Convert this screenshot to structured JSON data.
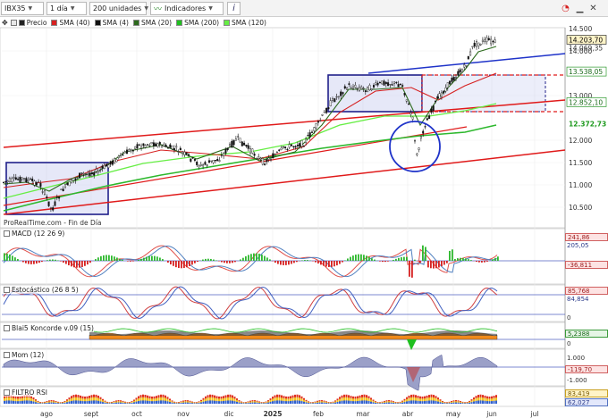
{
  "toolbar": {
    "symbol": "IBX35",
    "period": "1 día",
    "units": "200 unidades",
    "indicators": "Indicadores",
    "info": "i"
  },
  "legend": [
    {
      "label": "Precio",
      "color": "#222222"
    },
    {
      "label": "SMA (40)",
      "color": "#d62020"
    },
    {
      "label": "SMA (4)",
      "color": "#111111"
    },
    {
      "label": "SMA (20)",
      "color": "#2e6b1e"
    },
    {
      "label": "SMA (200)",
      "color": "#1fbf1f"
    },
    {
      "label": "SMA (120)",
      "color": "#66ee44"
    }
  ],
  "watermark": "ProRealTime.com - Fin de Día",
  "price_tags": [
    {
      "text": "14.500",
      "value": 14500,
      "style": "axis"
    },
    {
      "text": "14.203,70",
      "value": 14250,
      "style": "last"
    },
    {
      "text": "14.069,35",
      "value": 14075,
      "style": "plain"
    },
    {
      "text": "14.000",
      "value": 14000,
      "style": "axis"
    },
    {
      "text": "13.538,05",
      "value": 13538,
      "style": "green"
    },
    {
      "text": "13.000",
      "value": 13000,
      "style": "axis"
    },
    {
      "text": "12.852,10",
      "value": 12852,
      "style": "green"
    },
    {
      "text": "12.372,73",
      "value": 12372,
      "style": "bold-green"
    },
    {
      "text": "12.000",
      "value": 12000,
      "style": "axis"
    },
    {
      "text": "11.500",
      "value": 11500,
      "style": "axis"
    },
    {
      "text": "11.000",
      "value": 11000,
      "style": "axis"
    },
    {
      "text": "10.500",
      "value": 10500,
      "style": "axis"
    }
  ],
  "panes": {
    "macd": {
      "title": "MACD (12 26 9)",
      "tags": [
        "241,86",
        "205,05",
        "-36,811"
      ]
    },
    "stoch": {
      "title": "Estocástico (26 8 5)",
      "tags": [
        "85,768",
        "84,854",
        "0"
      ]
    },
    "blai5": {
      "title": "Blai5 Koncorde v.09 (15)",
      "tags": [
        "5,2388",
        "0"
      ]
    },
    "mom": {
      "title": "Mom (12)",
      "tags": [
        "1.000",
        "-119,70",
        "-1.000"
      ]
    },
    "rsi": {
      "title": "FILTRO RSI",
      "tags": [
        "83,419",
        "62,027"
      ]
    }
  },
  "xaxis": {
    "labels": [
      "ago",
      "sept",
      "oct",
      "nov",
      "dic",
      "2025",
      "feb",
      "mar",
      "abr",
      "may",
      "jun",
      "jul"
    ],
    "bold": "2025"
  },
  "colors": {
    "toolbar_bg": "#f3f3f3",
    "macd_fast": "#e0504a",
    "macd_slow": "#5080c0",
    "hist_pos": "#2db82d",
    "hist_neg": "#d62020",
    "stoch_k": "#d04040",
    "stoch_d": "#4060c0",
    "rect_fill": "#c8cdf0",
    "rect_border": "#20208a",
    "channel_blue": "#1f33c9",
    "channel_red": "#e01a1a",
    "mom_fill": "#9ba0c8",
    "koncorde_orange": "#f08a1a",
    "koncorde_green": "#1fbf1f"
  },
  "chart_data": [
    {
      "type": "candlestick",
      "title": "IBX35 - Precio",
      "ylim": [
        10200,
        14750
      ],
      "x": [
        "ago",
        "sept",
        "oct",
        "nov",
        "dic",
        "2025",
        "feb",
        "mar",
        "abr",
        "may",
        "jun",
        "jul"
      ],
      "close": [
        11000,
        11200,
        11850,
        11900,
        11550,
        11850,
        12800,
        13350,
        12200,
        13500,
        14200,
        null
      ],
      "series": [
        {
          "name": "SMA (40)",
          "values": [
            11000,
            11050,
            11450,
            11800,
            11750,
            11800,
            12100,
            12900,
            13050,
            13100,
            13900,
            null
          ]
        },
        {
          "name": "SMA (200)",
          "values": [
            10500,
            10750,
            11000,
            11200,
            11350,
            11500,
            11750,
            11950,
            12050,
            12200,
            12373,
            null
          ]
        },
        {
          "name": "SMA (120)",
          "values": [
            10800,
            11050,
            11350,
            11500,
            11550,
            11700,
            12000,
            12400,
            12500,
            12650,
            12852,
            null
          ]
        }
      ],
      "annotations": [
        "rectangle ago",
        "rectangle mar-abr",
        "circle abr",
        "ascending channel"
      ]
    },
    {
      "type": "bar",
      "title": "MACD (12 26 9)",
      "last": [
        241.86,
        205.05,
        -36.811
      ]
    },
    {
      "type": "line",
      "title": "Estocástico (26 8 5)",
      "ylim": [
        0,
        100
      ],
      "last": [
        85.768,
        84.854
      ]
    },
    {
      "type": "area",
      "title": "Blai5 Koncorde v.09 (15)",
      "last": [
        5.2388
      ]
    },
    {
      "type": "area",
      "title": "Mom (12)",
      "last": [
        -119.7
      ]
    },
    {
      "type": "area",
      "title": "FILTRO RSI",
      "last": [
        83.419,
        62.027
      ]
    }
  ]
}
